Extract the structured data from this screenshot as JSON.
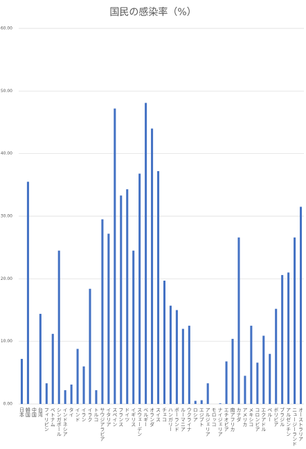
{
  "chart_data": {
    "type": "bar",
    "title": "国民の感染率（%）",
    "categories": [
      "日本",
      "韓国",
      "中国",
      "台湾",
      "フィリピン",
      "ベトナム",
      "シンガポール",
      "インドネシア",
      "タイ",
      "インド",
      "イラン",
      "イラク",
      "トルコ",
      "サウジアラビア",
      "イタリア",
      "スペイン",
      "フランス",
      "ドイツ",
      "イギリス",
      "スウェーデン",
      "ベルギー",
      "オランダ",
      "スイス",
      "チェコ",
      "ハンガリー",
      "ポーランド",
      "ルーマニア",
      "ウクライナ",
      "ロシア",
      "エジプト",
      "アルジェリア",
      "モロッコ",
      "ナイジェリア",
      "エチオピア",
      "南アフリカ",
      "カナダ",
      "アメリカ",
      "メキシコ",
      "コロンビア",
      "エクアドル",
      "ペルー",
      "ボリビア",
      "ブラジル",
      "アルゼンチン",
      "ニュージーランド",
      "オーストラリア"
    ],
    "values": [
      7.2,
      35.5,
      0,
      14.4,
      3.3,
      11.2,
      24.5,
      2.2,
      3.1,
      8.8,
      6.0,
      18.4,
      2.2,
      29.5,
      27.2,
      47.2,
      33.3,
      34.3,
      24.5,
      36.8,
      48.1,
      44.0,
      37.2,
      19.7,
      15.7,
      15.0,
      12.0,
      12.5,
      0.5,
      0.6,
      3.3,
      0,
      0.1,
      6.8,
      10.4,
      26.6,
      4.5,
      12.5,
      6.6,
      10.9,
      8.0,
      15.2,
      20.6,
      21.0,
      26.6,
      31.5
    ],
    "color": "#4472c4",
    "ylim": [
      0,
      60
    ],
    "yticks": [
      {
        "value": 0,
        "label": "0.00"
      },
      {
        "value": 10,
        "label": "10.00"
      },
      {
        "value": 20,
        "label": "20.00"
      },
      {
        "value": 30,
        "label": "30.00"
      },
      {
        "value": 40,
        "label": "40.00"
      },
      {
        "value": 50,
        "label": "50.00"
      },
      {
        "value": 60,
        "label": "60.00"
      }
    ],
    "grid": true
  }
}
